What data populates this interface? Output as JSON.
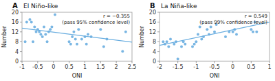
{
  "chart_data": [
    {
      "type": "scatter",
      "title": "El Niño-like",
      "panel_label": "A",
      "annotations": [
        "r = −0.355",
        "(pass 95% confidence level)"
      ],
      "xlabel": "ONI",
      "ylabel": "Number",
      "xlim": [
        -1,
        2.5
      ],
      "ylim": [
        0,
        20
      ],
      "xticks": [
        -1,
        -0.5,
        0,
        0.5,
        1,
        1.5,
        2,
        2.5
      ],
      "yticks": [
        0,
        4,
        8,
        12,
        16,
        20
      ],
      "series": [
        {
          "type": "scatter",
          "color": "#6aaee0",
          "x": [
            -0.9,
            -0.85,
            -0.75,
            -0.7,
            -0.65,
            -0.6,
            -0.55,
            -0.5,
            -0.45,
            -0.4,
            -0.35,
            -0.3,
            -0.25,
            -0.2,
            -0.15,
            -0.1,
            -0.05,
            0.05,
            0.5,
            0.55,
            0.6,
            0.65,
            0.7,
            0.75,
            0.8,
            0.9,
            1.0,
            1.05,
            1.1,
            1.2,
            1.5,
            1.6,
            1.7,
            2.2,
            2.3
          ],
          "values": [
            8,
            16,
            17,
            16,
            8,
            14,
            12,
            13,
            12,
            11,
            10,
            14,
            11,
            8,
            12,
            13,
            14,
            19,
            8,
            7,
            10,
            12,
            9,
            7,
            13,
            9,
            10,
            7,
            11,
            10,
            13,
            6,
            9,
            4,
            12
          ]
        },
        {
          "type": "line",
          "color": "#6aaee0",
          "x": [
            -1,
            2.5
          ],
          "values": [
            13.5,
            7.8
          ]
        }
      ]
    },
    {
      "type": "scatter",
      "title": "La Niña-like",
      "panel_label": "B",
      "annotations": [
        "r = 0.549",
        "(pass 99% confidence level)"
      ],
      "xlabel": "ONI",
      "ylabel": "Number",
      "xlim": [
        -2,
        1
      ],
      "ylim": [
        0,
        20
      ],
      "xticks": [
        -2,
        -1.5,
        -1,
        -0.5,
        0,
        0.5,
        1
      ],
      "yticks": [
        0,
        4,
        8,
        12,
        16,
        20
      ],
      "series": [
        {
          "type": "scatter",
          "color": "#6aaee0",
          "x": [
            -1.9,
            -1.85,
            -1.8,
            -1.75,
            -1.7,
            -1.6,
            -1.55,
            -1.5,
            -1.4,
            -1.35,
            -1.3,
            -1.1,
            -1.05,
            -1.0,
            -0.95,
            -0.9,
            -0.85,
            -0.8,
            -0.7,
            -0.65,
            -0.6,
            -0.5,
            -0.45,
            -0.2,
            -0.1,
            0.0,
            0.05,
            0.1,
            0.5,
            0.55,
            0.6,
            0.65
          ],
          "values": [
            8,
            7,
            8,
            6,
            9,
            7,
            8,
            1,
            6,
            8,
            7,
            6,
            7,
            8,
            11,
            14,
            9,
            10,
            13,
            11,
            14,
            12,
            15,
            10,
            12,
            12,
            13,
            11,
            13,
            12,
            16,
            12
          ]
        },
        {
          "type": "line",
          "color": "#6aaee0",
          "x": [
            -2,
            1
          ],
          "values": [
            6.5,
            16.0
          ]
        }
      ]
    }
  ]
}
